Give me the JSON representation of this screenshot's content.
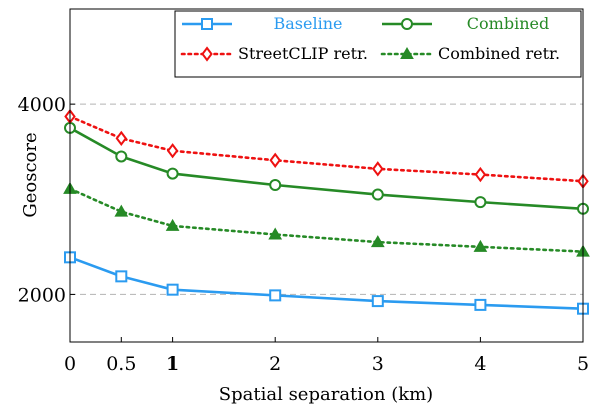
{
  "chart_data": {
    "type": "line",
    "xlabel": "Spatial separation (km)",
    "ylabel": "Geoscore",
    "x_ticks": [
      "0",
      "0.5",
      "1",
      "2",
      "3",
      "4",
      "5"
    ],
    "x_tick_bold": "1",
    "y_ticks": [
      "2000",
      "4000"
    ],
    "xlim": [
      0,
      5
    ],
    "ylim": [
      1500,
      5000
    ],
    "grid": "horizontal-dashed",
    "legend_position": "top-right",
    "series": [
      {
        "name": "Baseline",
        "color": "#2b9bf0",
        "line": "solid",
        "marker": "square",
        "x": [
          0,
          0.5,
          1,
          2,
          3,
          4,
          5
        ],
        "y": [
          2390,
          2190,
          2050,
          1990,
          1930,
          1890,
          1850
        ]
      },
      {
        "name": "Combined",
        "color": "#268a26",
        "line": "solid",
        "marker": "circle",
        "x": [
          0,
          0.5,
          1,
          2,
          3,
          4,
          5
        ],
        "y": [
          3750,
          3450,
          3270,
          3150,
          3050,
          2970,
          2900
        ]
      },
      {
        "name": "StreetCLIP retr.",
        "color": "#ee1111",
        "line": "dotted",
        "marker": "diamond",
        "x": [
          0,
          0.5,
          1,
          2,
          3,
          4,
          5
        ],
        "y": [
          3870,
          3640,
          3510,
          3410,
          3320,
          3260,
          3190
        ]
      },
      {
        "name": "Combined retr.",
        "color": "#268a26",
        "line": "dotted",
        "marker": "triangle",
        "x": [
          0,
          0.5,
          1,
          2,
          3,
          4,
          5
        ],
        "y": [
          3110,
          2870,
          2720,
          2630,
          2550,
          2500,
          2450
        ]
      }
    ]
  }
}
